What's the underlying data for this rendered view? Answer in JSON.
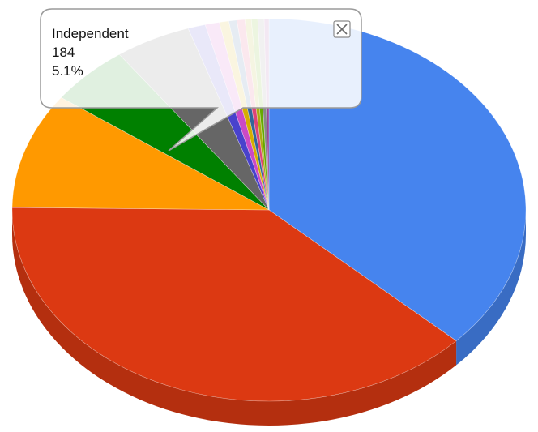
{
  "chart_data": {
    "type": "pie",
    "three_d": true,
    "legend": "none",
    "slices": [
      {
        "color": "#4684ee",
        "value": 37.0
      },
      {
        "color": "#dc3912",
        "value": 38.2
      },
      {
        "color": "#ff9900",
        "value": 9.8
      },
      {
        "label": "Independent",
        "count": 184,
        "value": 5.1,
        "color": "#008000"
      },
      {
        "color": "#666666",
        "value": 4.8
      },
      {
        "color": "#4942cc",
        "value": 1.1
      },
      {
        "color": "#cb4ac5",
        "value": 0.9
      },
      {
        "color": "#d6ae00",
        "value": 0.6
      },
      {
        "color": "#336699",
        "value": 0.5
      },
      {
        "color": "#dd4477",
        "value": 0.5
      },
      {
        "color": "#aaaa11",
        "value": 0.4
      },
      {
        "color": "#66aa00",
        "value": 0.4
      },
      {
        "color": "#888888",
        "value": 0.4
      },
      {
        "color": "#994499",
        "value": 0.3
      }
    ]
  },
  "tooltip": {
    "label": "Independent",
    "count": "184",
    "percent": "5.1%",
    "close_icon": "close-icon"
  }
}
